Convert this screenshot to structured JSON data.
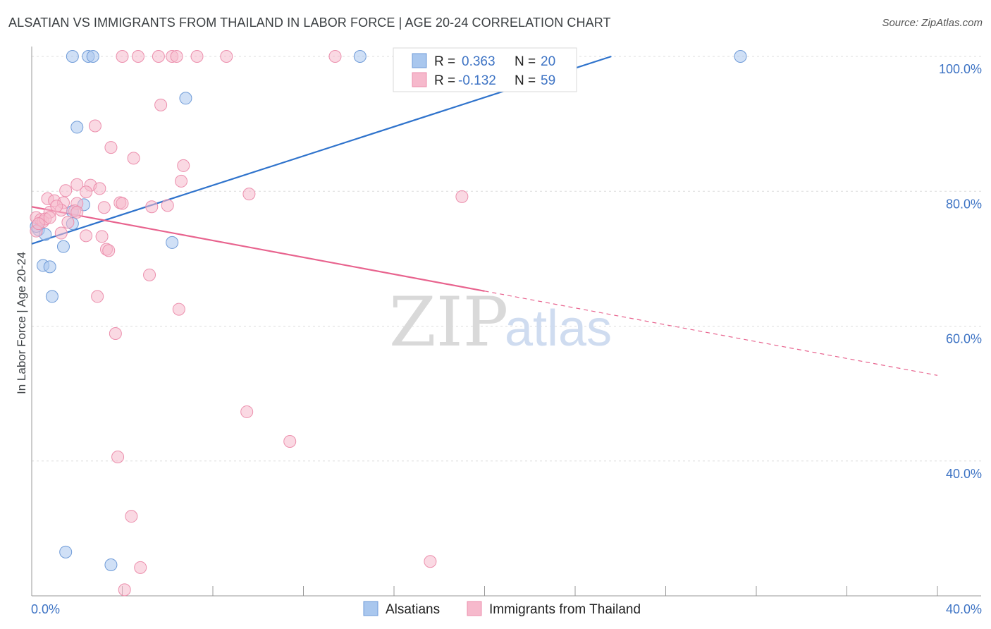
{
  "title": "ALSATIAN VS IMMIGRANTS FROM THAILAND IN LABOR FORCE | AGE 20-24 CORRELATION CHART",
  "source": "Source: ZipAtlas.com",
  "watermark": {
    "zip": "ZIP",
    "atlas": "atlas"
  },
  "chart_data": {
    "type": "scatter",
    "title": "ALSATIAN VS IMMIGRANTS FROM THAILAND IN LABOR FORCE | AGE 20-24 CORRELATION CHART",
    "xlabel": "",
    "ylabel": "In Labor Force | Age 20-24",
    "xlim": [
      0,
      40
    ],
    "ylim": [
      20,
      100
    ],
    "x_tick_labels": [
      "0.0%",
      "40.0%"
    ],
    "y_ticks": [
      40,
      60,
      80,
      100
    ],
    "y_tick_labels": [
      "40.0%",
      "60.0%",
      "80.0%",
      "100.0%"
    ],
    "grid": true,
    "legend_top": [
      {
        "r_label": "R =",
        "r_value": "0.363",
        "n_label": "N =",
        "n_value": "20",
        "color": "#a9c7ee"
      },
      {
        "r_label": "R =",
        "r_value": "-0.132",
        "n_label": "N =",
        "n_value": "59",
        "color": "#f6b9cc"
      }
    ],
    "series": [
      {
        "name": "Alsatians",
        "color": "#a9c7ee",
        "stroke": "#6f9bd8",
        "line_color": "#2f73cc",
        "trend": {
          "x0": 0,
          "y0": 72.2,
          "x1": 25.6,
          "y1": 100.0
        },
        "points": [
          [
            1.8,
            100
          ],
          [
            2.5,
            100
          ],
          [
            2.7,
            100
          ],
          [
            14.5,
            100
          ],
          [
            31.3,
            100
          ],
          [
            6.8,
            93.8
          ],
          [
            2.0,
            89.5
          ],
          [
            2.3,
            78.0
          ],
          [
            1.8,
            77.0
          ],
          [
            0.3,
            74.3
          ],
          [
            0.6,
            73.6
          ],
          [
            1.4,
            71.8
          ],
          [
            6.2,
            72.4
          ],
          [
            0.5,
            69.0
          ],
          [
            0.8,
            68.8
          ],
          [
            0.9,
            64.4
          ],
          [
            1.5,
            26.5
          ],
          [
            3.5,
            24.6
          ],
          [
            1.8,
            75.2
          ],
          [
            0.2,
            74.8
          ]
        ]
      },
      {
        "name": "Immigrants from Thailand",
        "color": "#f6b9cc",
        "stroke": "#ec8fad",
        "line_color": "#e8638e",
        "trend": {
          "x0": 0,
          "y0": 77.7,
          "x1": 20.0,
          "y1": 65.2
        },
        "trend_dashed": {
          "x0": 20.0,
          "y0": 65.2,
          "x1": 40.0,
          "y1": 52.7
        },
        "points": [
          [
            4.0,
            100
          ],
          [
            4.7,
            100
          ],
          [
            5.6,
            100
          ],
          [
            6.2,
            100
          ],
          [
            6.4,
            100
          ],
          [
            7.3,
            100
          ],
          [
            8.6,
            100
          ],
          [
            13.4,
            100
          ],
          [
            5.7,
            92.8
          ],
          [
            2.8,
            89.7
          ],
          [
            3.5,
            86.5
          ],
          [
            4.5,
            84.9
          ],
          [
            6.7,
            83.8
          ],
          [
            6.6,
            81.5
          ],
          [
            2.0,
            81.0
          ],
          [
            2.6,
            80.9
          ],
          [
            3.0,
            80.4
          ],
          [
            1.5,
            80.1
          ],
          [
            2.4,
            79.9
          ],
          [
            9.6,
            79.6
          ],
          [
            19.0,
            79.2
          ],
          [
            0.7,
            78.9
          ],
          [
            1.0,
            78.6
          ],
          [
            1.4,
            78.3
          ],
          [
            2.0,
            78.2
          ],
          [
            3.9,
            78.3
          ],
          [
            4.0,
            78.2
          ],
          [
            6.0,
            77.9
          ],
          [
            3.2,
            77.6
          ],
          [
            1.3,
            77.2
          ],
          [
            1.9,
            77.1
          ],
          [
            2.0,
            76.9
          ],
          [
            5.3,
            77.7
          ],
          [
            0.8,
            76.9
          ],
          [
            0.2,
            76.1
          ],
          [
            0.4,
            75.8
          ],
          [
            0.5,
            75.5
          ],
          [
            0.6,
            75.9
          ],
          [
            0.8,
            76.1
          ],
          [
            1.6,
            75.4
          ],
          [
            1.3,
            73.8
          ],
          [
            2.4,
            73.4
          ],
          [
            3.1,
            73.3
          ],
          [
            0.2,
            74.1
          ],
          [
            3.3,
            71.4
          ],
          [
            3.4,
            71.2
          ],
          [
            5.2,
            67.6
          ],
          [
            2.9,
            64.4
          ],
          [
            6.5,
            62.5
          ],
          [
            3.7,
            58.9
          ],
          [
            9.5,
            47.3
          ],
          [
            11.4,
            42.9
          ],
          [
            3.8,
            40.6
          ],
          [
            4.4,
            31.8
          ],
          [
            4.8,
            24.2
          ],
          [
            17.6,
            25.1
          ],
          [
            4.1,
            20.9
          ],
          [
            1.1,
            77.8
          ],
          [
            0.3,
            75.2
          ]
        ]
      }
    ]
  }
}
